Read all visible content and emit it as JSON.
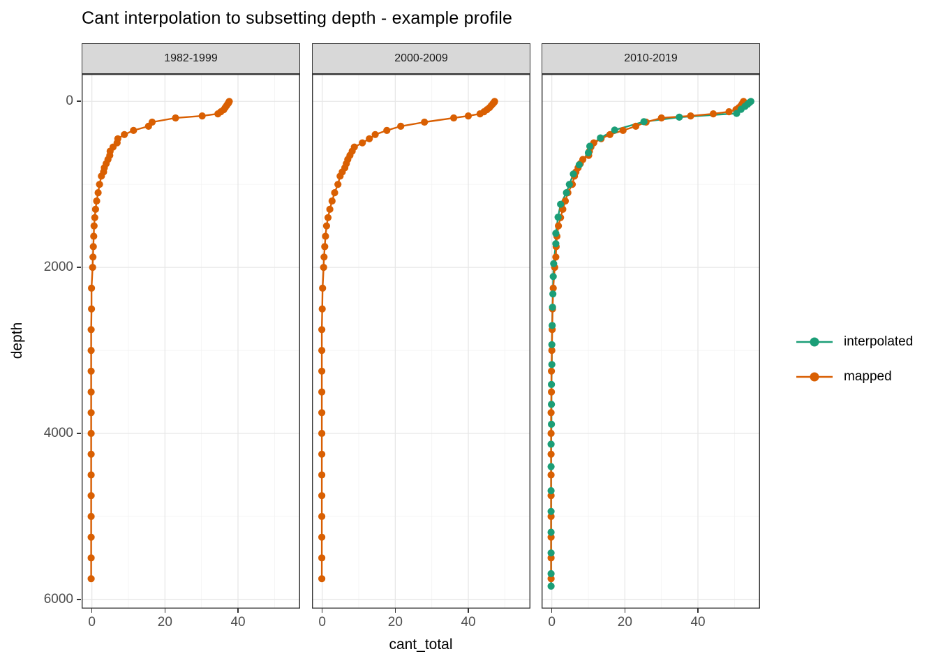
{
  "title": "Cant interpolation to subsetting depth - example profile",
  "axes": {
    "x_label": "cant_total",
    "y_label": "depth",
    "x_ticks": [
      0,
      20,
      40
    ],
    "x_minor": [
      10,
      30,
      50
    ],
    "y_ticks": [
      0,
      2000,
      4000,
      6000
    ],
    "y_minor": [
      1000,
      3000,
      5000
    ],
    "x_range": [
      -2.8,
      57.0
    ],
    "y_range": [
      -330,
      6110
    ],
    "y_reversed": true
  },
  "colors": {
    "interpolated": "#1B9E77",
    "mapped": "#D95F02",
    "strip_fill": "#D8D8D8",
    "panel_border": "#333333",
    "grid_major": "#E7E7E7",
    "grid_minor": "#F3F3F3",
    "tick_text": "#4D4D4D"
  },
  "legend": {
    "items": [
      {
        "label": "interpolated",
        "color": "#1B9E77"
      },
      {
        "label": "mapped",
        "color": "#D95F02"
      }
    ]
  },
  "chart_data": {
    "type": "line",
    "title": "Cant interpolation to subsetting depth - example profile",
    "xlabel": "cant_total",
    "ylabel": "depth",
    "xlim": [
      -2.8,
      57.0
    ],
    "ylim_top_to_bottom": [
      0,
      6000
    ],
    "grid": true,
    "legend_position": "right",
    "facets": [
      {
        "label": "1982-1999",
        "series": [
          {
            "name": "mapped",
            "x": [
              37.6,
              37.5,
              37.4,
              37.2,
              36.9,
              36.5,
              36.1,
              35.3,
              34.5,
              30.2,
              22.9,
              16.5,
              15.5,
              11.4,
              8.9,
              7.1,
              6.9,
              5.8,
              5.0,
              4.9,
              4.4,
              3.9,
              3.4,
              3.2,
              2.6,
              2.1,
              1.7,
              1.3,
              1.0,
              0.8,
              0.6,
              0.5,
              0.4,
              0.3,
              0.2,
              -0.1,
              -0.1,
              -0.2,
              -0.2,
              -0.2,
              -0.2,
              -0.2,
              -0.2,
              -0.2,
              -0.2,
              -0.2,
              -0.2,
              -0.2,
              -0.2,
              -0.2
            ],
            "y": [
              0,
              10,
              20,
              30,
              50,
              75,
              100,
              125,
              150,
              175,
              200,
              250,
              300,
              350,
              400,
              450,
              500,
              550,
              600,
              650,
              700,
              750,
              800,
              850,
              900,
              1000,
              1100,
              1200,
              1300,
              1400,
              1500,
              1625,
              1750,
              1875,
              2000,
              2250,
              2500,
              2750,
              3000,
              3250,
              3500,
              3750,
              4000,
              4250,
              4500,
              4750,
              5000,
              5250,
              5500,
              5750
            ]
          }
        ]
      },
      {
        "label": "2000-2009",
        "series": [
          {
            "name": "mapped",
            "x": [
              47.2,
              47.1,
              46.9,
              46.7,
              46.3,
              45.8,
              45.1,
              44.3,
              43.2,
              40.0,
              36.0,
              28.0,
              21.5,
              17.7,
              14.5,
              12.9,
              11.0,
              8.8,
              8.2,
              7.6,
              7.0,
              6.6,
              6.2,
              5.5,
              4.9,
              4.3,
              3.4,
              2.7,
              2.1,
              1.6,
              1.2,
              0.9,
              0.7,
              0.5,
              0.4,
              0.1,
              0.0,
              -0.1,
              -0.1,
              -0.1,
              -0.1,
              -0.1,
              -0.1,
              -0.1,
              -0.1,
              -0.1,
              -0.1,
              -0.1,
              -0.1,
              -0.1
            ],
            "y": [
              0,
              10,
              20,
              30,
              50,
              75,
              100,
              125,
              150,
              175,
              200,
              250,
              300,
              350,
              400,
              450,
              500,
              550,
              600,
              650,
              700,
              750,
              800,
              850,
              900,
              1000,
              1100,
              1200,
              1300,
              1400,
              1500,
              1625,
              1750,
              1875,
              2000,
              2250,
              2500,
              2750,
              3000,
              3250,
              3500,
              3750,
              4000,
              4250,
              4500,
              4750,
              5000,
              5250,
              5500,
              5750
            ]
          }
        ]
      },
      {
        "label": "2010-2019",
        "series": [
          {
            "name": "interpolated",
            "x": [
              54.5,
              54.1,
              53.6,
              52.9,
              51.8,
              50.6,
              34.9,
              25.2,
              17.2,
              13.3,
              10.4,
              10.0,
              7.5,
              5.9,
              4.8,
              4.0,
              2.4,
              1.7,
              1.1,
              1.1,
              0.5,
              0.4,
              0.3,
              0.2,
              0.1,
              0.0,
              0.0,
              -0.1,
              -0.1,
              -0.1,
              -0.2,
              -0.2,
              -0.2,
              -0.2,
              -0.2,
              -0.2,
              -0.2,
              -0.2
            ],
            "y": [
              0,
              15,
              35,
              60,
              95,
              145,
              190,
              245,
              345,
              440,
              540,
              620,
              765,
              875,
              1000,
              1100,
              1240,
              1395,
              1590,
              1715,
              1955,
              2110,
              2320,
              2480,
              2700,
              2930,
              3170,
              3410,
              3650,
              3890,
              4130,
              4400,
              4690,
              4940,
              5190,
              5440,
              5690,
              5840
            ]
          },
          {
            "name": "mapped",
            "x": [
              52.5,
              52.4,
              52.3,
              52.1,
              51.8,
              51.2,
              50.4,
              48.5,
              44.2,
              38.0,
              30.0,
              25.8,
              23.0,
              19.5,
              15.9,
              13.5,
              11.5,
              10.7,
              10.3,
              10.1,
              8.5,
              7.8,
              7.2,
              6.6,
              6.2,
              5.6,
              4.4,
              3.7,
              3.0,
              2.4,
              1.8,
              1.4,
              1.2,
              1.1,
              0.8,
              0.4,
              0.2,
              0.1,
              0.0,
              -0.1,
              -0.1,
              -0.2,
              -0.2,
              -0.2,
              -0.2,
              -0.2,
              -0.2,
              -0.2,
              -0.2,
              -0.2
            ],
            "y": [
              0,
              10,
              20,
              30,
              50,
              75,
              100,
              125,
              150,
              175,
              200,
              250,
              300,
              350,
              400,
              450,
              500,
              550,
              600,
              650,
              700,
              750,
              800,
              850,
              900,
              1000,
              1100,
              1200,
              1300,
              1400,
              1500,
              1625,
              1750,
              1875,
              2000,
              2250,
              2500,
              2750,
              3000,
              3250,
              3500,
              3750,
              4000,
              4250,
              4500,
              4750,
              5000,
              5250,
              5500,
              5750
            ]
          }
        ]
      }
    ]
  }
}
